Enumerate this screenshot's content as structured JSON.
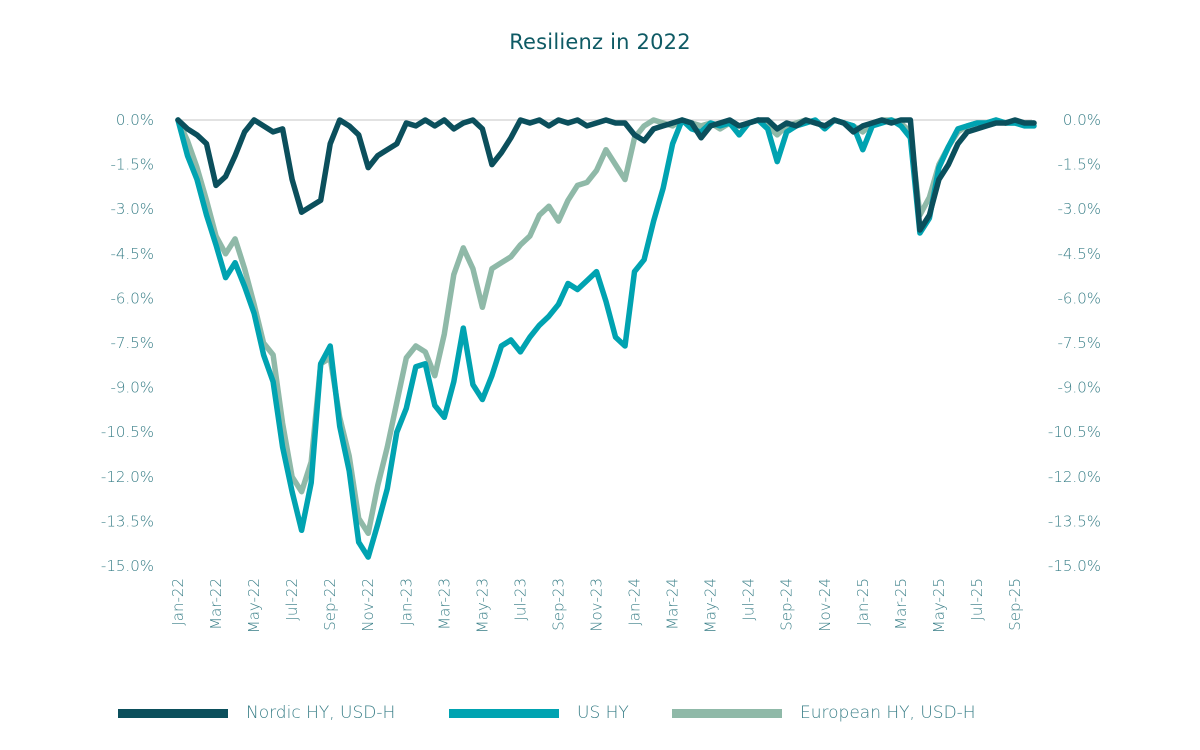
{
  "chart_data": {
    "type": "line",
    "title": "Resilienz in 2022",
    "xlabel": "",
    "ylabel": "",
    "ylim": [
      -15.0,
      0.0
    ],
    "yticks": [
      "0.0%",
      "-1.5%",
      "-3.0%",
      "-4.5%",
      "-6.0%",
      "-7.5%",
      "-9.0%",
      "-10.5%",
      "-12.0%",
      "-13.5%",
      "-15.0%"
    ],
    "ytick_values": [
      0,
      -1.5,
      -3.0,
      -4.5,
      -6.0,
      -7.5,
      -9.0,
      -10.5,
      -12.0,
      -13.5,
      -15.0
    ],
    "secondary_yaxis": true,
    "xticks": [
      "Jan-22",
      "Mar-22",
      "May-22",
      "Jul-22",
      "Sep-22",
      "Nov-22",
      "Jan-23",
      "Mar-23",
      "May-23",
      "Jul-23",
      "Sep-23",
      "Nov-23",
      "Jan-24",
      "Mar-24",
      "May-24",
      "Jul-24",
      "Sep-24",
      "Nov-24",
      "Jan-25",
      "Mar-25",
      "May-25",
      "Jul-25",
      "Sep-25"
    ],
    "x_unit": "months since Jan-22",
    "x_range": [
      0,
      45
    ],
    "grid": false,
    "legend_position": "bottom",
    "series": [
      {
        "name": "Nordic HY, USD-H",
        "color": "#0b4f5c",
        "x": [
          0,
          0.5,
          1,
          1.5,
          2,
          2.5,
          3,
          3.5,
          4,
          4.5,
          5,
          5.5,
          6,
          6.5,
          7,
          7.5,
          8,
          8.5,
          9,
          9.5,
          10,
          10.5,
          11,
          11.5,
          12,
          12.5,
          13,
          13.5,
          14,
          14.5,
          15,
          15.5,
          16,
          16.5,
          17,
          17.5,
          18,
          18.5,
          19,
          19.5,
          20,
          20.5,
          21,
          21.5,
          22,
          22.5,
          23,
          23.5,
          24,
          24.5,
          25,
          25.5,
          26,
          26.5,
          27,
          27.5,
          28,
          28.5,
          29,
          29.5,
          30,
          30.5,
          31,
          31.5,
          32,
          32.5,
          33,
          33.5,
          34,
          34.5,
          35,
          35.5,
          36,
          36.5,
          37,
          37.5,
          38,
          38.5,
          39,
          39.5,
          40,
          40.5,
          41,
          41.5,
          42,
          42.5,
          43,
          43.5,
          44,
          44.5,
          45
        ],
        "values": [
          0,
          -0.3,
          -0.5,
          -0.8,
          -2.2,
          -1.9,
          -1.2,
          -0.4,
          0,
          -0.2,
          -0.4,
          -0.3,
          -2.0,
          -3.1,
          -2.9,
          -2.7,
          -0.8,
          0,
          -0.2,
          -0.5,
          -1.6,
          -1.2,
          -1.0,
          -0.8,
          -0.1,
          -0.2,
          0,
          -0.2,
          0,
          -0.3,
          -0.1,
          0,
          -0.3,
          -1.5,
          -1.1,
          -0.6,
          0,
          -0.1,
          0,
          -0.2,
          0,
          -0.1,
          0,
          -0.2,
          -0.1,
          0,
          -0.1,
          -0.1,
          -0.5,
          -0.7,
          -0.3,
          -0.2,
          -0.1,
          0,
          -0.1,
          -0.6,
          -0.2,
          -0.1,
          0,
          -0.2,
          -0.1,
          0,
          0,
          -0.3,
          -0.1,
          -0.2,
          0,
          -0.1,
          -0.2,
          0,
          -0.1,
          -0.4,
          -0.2,
          -0.1,
          0,
          -0.1,
          0,
          0,
          -3.7,
          -3.2,
          -2.0,
          -1.5,
          -0.8,
          -0.4,
          -0.3,
          -0.2,
          -0.1,
          -0.1,
          0,
          -0.1,
          -0.1
        ]
      },
      {
        "name": "US HY",
        "color": "#00a3b1",
        "x": [
          0,
          0.5,
          1,
          1.5,
          2,
          2.5,
          3,
          3.5,
          4,
          4.5,
          5,
          5.5,
          6,
          6.5,
          7,
          7.5,
          8,
          8.5,
          9,
          9.5,
          10,
          10.5,
          11,
          11.5,
          12,
          12.5,
          13,
          13.5,
          14,
          14.5,
          15,
          15.5,
          16,
          16.5,
          17,
          17.5,
          18,
          18.5,
          19,
          19.5,
          20,
          20.5,
          21,
          21.5,
          22,
          22.5,
          23,
          23.5,
          24,
          24.5,
          25,
          25.5,
          26,
          26.5,
          27,
          27.5,
          28,
          28.5,
          29,
          29.5,
          30,
          30.5,
          31,
          31.5,
          32,
          32.5,
          33,
          33.5,
          34,
          34.5,
          35,
          35.5,
          36,
          36.5,
          37,
          37.5,
          38,
          38.5,
          39,
          39.5,
          40,
          40.5,
          41,
          41.5,
          42,
          42.5,
          43,
          43.5,
          44,
          44.5,
          45
        ],
        "values": [
          0,
          -1.2,
          -2.0,
          -3.2,
          -4.2,
          -5.3,
          -4.8,
          -5.6,
          -6.5,
          -7.9,
          -8.8,
          -11.0,
          -12.5,
          -13.8,
          -12.2,
          -8.2,
          -7.6,
          -10.3,
          -11.8,
          -14.2,
          -14.7,
          -13.6,
          -12.4,
          -10.5,
          -9.7,
          -8.3,
          -8.2,
          -9.6,
          -10.0,
          -8.8,
          -7.0,
          -8.9,
          -9.4,
          -8.6,
          -7.6,
          -7.4,
          -7.8,
          -7.3,
          -6.9,
          -6.6,
          -6.2,
          -5.5,
          -5.7,
          -5.4,
          -5.1,
          -6.1,
          -7.3,
          -7.6,
          -5.1,
          -4.7,
          -3.4,
          -2.3,
          -0.8,
          0,
          -0.3,
          -0.4,
          -0.1,
          -0.2,
          -0.1,
          -0.5,
          -0.1,
          0,
          -0.3,
          -1.4,
          -0.4,
          -0.2,
          -0.1,
          0,
          -0.3,
          0,
          -0.1,
          -0.2,
          -1.0,
          -0.2,
          -0.1,
          0,
          -0.2,
          -0.6,
          -3.8,
          -3.3,
          -1.6,
          -0.9,
          -0.3,
          -0.2,
          -0.1,
          -0.1,
          0,
          -0.1,
          -0.1,
          -0.2,
          -0.2
        ]
      },
      {
        "name": "European HY, USD-H",
        "color": "#8fb9a8",
        "x": [
          0,
          0.5,
          1,
          1.5,
          2,
          2.5,
          3,
          3.5,
          4,
          4.5,
          5,
          5.5,
          6,
          6.5,
          7,
          7.5,
          8,
          8.5,
          9,
          9.5,
          10,
          10.5,
          11,
          11.5,
          12,
          12.5,
          13,
          13.5,
          14,
          14.5,
          15,
          15.5,
          16,
          16.5,
          17,
          17.5,
          18,
          18.5,
          19,
          19.5,
          20,
          20.5,
          21,
          21.5,
          22,
          22.5,
          23,
          23.5,
          24,
          24.5,
          25,
          25.5,
          26,
          26.5,
          27,
          27.5,
          28,
          28.5,
          29,
          29.5,
          30,
          30.5,
          31,
          31.5,
          32,
          32.5,
          33,
          33.5,
          34,
          34.5,
          35,
          35.5,
          36,
          36.5,
          37,
          37.5,
          38,
          38.5,
          39,
          39.5,
          40,
          40.5,
          41,
          41.5,
          42,
          42.5,
          43,
          43.5,
          44,
          44.5,
          45
        ],
        "values": [
          0,
          -0.7,
          -1.6,
          -2.7,
          -3.9,
          -4.5,
          -4.0,
          -5.0,
          -6.2,
          -7.5,
          -7.9,
          -10.2,
          -12.0,
          -12.5,
          -11.5,
          -8.2,
          -8.0,
          -10.0,
          -11.3,
          -13.4,
          -13.9,
          -12.3,
          -11.0,
          -9.5,
          -8.0,
          -7.6,
          -7.8,
          -8.6,
          -7.2,
          -5.2,
          -4.3,
          -5.0,
          -6.3,
          -5.0,
          -4.8,
          -4.6,
          -4.2,
          -3.9,
          -3.2,
          -2.9,
          -3.4,
          -2.7,
          -2.2,
          -2.1,
          -1.7,
          -1.0,
          -1.5,
          -2.0,
          -0.6,
          -0.2,
          0,
          -0.1,
          -0.2,
          0,
          -0.1,
          -0.2,
          -0.1,
          -0.3,
          -0.1,
          -0.2,
          -0.1,
          0,
          -0.2,
          -0.5,
          -0.2,
          -0.1,
          0,
          -0.1,
          -0.2,
          0,
          -0.1,
          -0.2,
          -0.4,
          -0.1,
          0,
          0,
          -0.1,
          -0.4,
          -3.2,
          -2.6,
          -1.5,
          -0.9,
          -0.4,
          -0.2,
          -0.1,
          -0.1,
          0,
          -0.1,
          -0.1,
          -0.1,
          -0.1
        ]
      }
    ]
  }
}
